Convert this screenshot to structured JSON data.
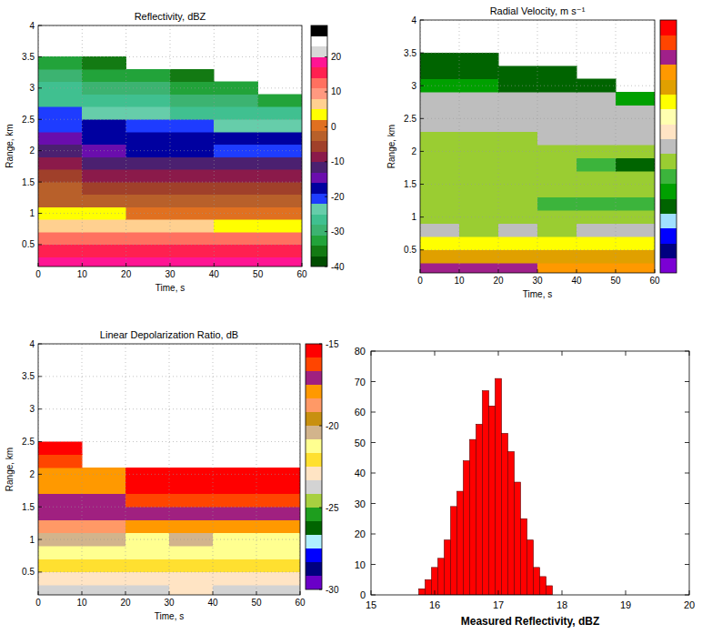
{
  "chart_data": [
    {
      "type": "heatmap",
      "title": "Reflectivity, dBZ",
      "x_label": "Time, s",
      "y_label": "Range, km",
      "xlim": [
        0,
        60
      ],
      "ylim": [
        0.15,
        4
      ],
      "xticks": [
        0,
        10,
        20,
        30,
        40,
        50,
        60
      ],
      "yticks": [
        0.5,
        1,
        1.5,
        2,
        2.5,
        3,
        3.5,
        4
      ],
      "grid": true,
      "x_edges": [
        0,
        10,
        20,
        30,
        40,
        50,
        60
      ],
      "y_edges": [
        0.15,
        0.3,
        0.5,
        0.7,
        0.9,
        1.1,
        1.3,
        1.5,
        1.7,
        1.9,
        2.1,
        2.3,
        2.5,
        2.7,
        2.9,
        3.1,
        3.3,
        3.5,
        3.7,
        3.9
      ],
      "z": [
        [
          17,
          17,
          17,
          17,
          17,
          17
        ],
        [
          16,
          16,
          16,
          16,
          16,
          16
        ],
        [
          13,
          13,
          12,
          12,
          12,
          12
        ],
        [
          7,
          6,
          6,
          5,
          4,
          4
        ],
        [
          2,
          2,
          1,
          1,
          0,
          0
        ],
        [
          -1,
          -2,
          -2,
          -3,
          -3,
          -3
        ],
        [
          -4,
          -5,
          -5,
          -6,
          -6,
          -6
        ],
        [
          -7,
          -8,
          -8,
          -9,
          -9,
          -10
        ],
        [
          -10,
          -11,
          -12,
          -12,
          -13,
          -13
        ],
        [
          -12,
          -14,
          -18,
          -19,
          -20,
          -21
        ],
        [
          -16,
          -19,
          -17,
          -18,
          -18,
          -19
        ],
        [
          -20,
          -18,
          -21,
          -22,
          -23,
          -24
        ],
        [
          -22,
          -23,
          -25,
          -26,
          -27,
          -28
        ],
        [
          -26,
          -26,
          -28,
          -29,
          -30,
          -32
        ],
        [
          -28,
          -29,
          -31,
          -32,
          -34,
          null
        ],
        [
          -31,
          -32,
          -34,
          -35,
          null,
          null
        ],
        [
          -34,
          -35,
          null,
          null,
          null,
          null
        ],
        [
          null,
          null,
          null,
          null,
          null,
          null
        ],
        [
          null,
          null,
          null,
          null,
          null,
          null
        ]
      ],
      "colorbar": {
        "lim": [
          -40,
          29
        ],
        "ticks": [
          -40,
          -30,
          -20,
          -10,
          0,
          10,
          20
        ],
        "colors": [
          "#004d00",
          "#137a13",
          "#22a33a",
          "#3cb371",
          "#40c090",
          "#66cdaa",
          "#1e3cff",
          "#0000a0",
          "#6a0dad",
          "#4b2070",
          "#8b1a4a",
          "#a0402a",
          "#b8602a",
          "#e07020",
          "#ffff00",
          "#ffd090",
          "#ff9980",
          "#ff7060",
          "#ff2050",
          "#ff1493",
          "#d8d8d8",
          "#ffffff",
          "#000000"
        ]
      }
    },
    {
      "type": "heatmap",
      "title": "Radial Velocity, m s⁻¹",
      "x_label": "Time, s",
      "y_label": "Range, km",
      "xlim": [
        0,
        60
      ],
      "ylim": [
        0.15,
        4
      ],
      "xticks": [
        0,
        10,
        20,
        30,
        40,
        50,
        60
      ],
      "yticks": [
        0.5,
        1,
        1.5,
        2,
        2.5,
        3,
        3.5,
        4
      ],
      "grid": true,
      "x_edges": [
        0,
        10,
        20,
        30,
        40,
        50,
        60
      ],
      "y_edges": [
        0.15,
        0.3,
        0.5,
        0.7,
        0.9,
        1.1,
        1.3,
        1.5,
        1.7,
        1.9,
        2.1,
        2.3,
        2.5,
        2.7,
        2.9,
        3.1,
        3.3,
        3.5,
        3.7,
        3.9
      ],
      "z": [
        [
          2.8,
          2.8,
          2.8,
          2.4,
          2.4,
          2.4
        ],
        [
          1.8,
          1.8,
          1.8,
          1.8,
          1.8,
          1.8
        ],
        [
          1.3,
          1.3,
          1.3,
          1.3,
          1.3,
          1.3
        ],
        [
          0,
          -0.4,
          0,
          -0.4,
          0,
          0
        ],
        [
          -0.4,
          -0.4,
          -0.4,
          -0.4,
          -0.4,
          -0.4
        ],
        [
          -0.4,
          -0.4,
          -0.4,
          -0.9,
          -0.9,
          -0.9
        ],
        [
          -0.4,
          -0.4,
          -0.4,
          -0.4,
          -0.4,
          -0.4
        ],
        [
          -0.4,
          -0.4,
          -0.4,
          -0.4,
          -0.4,
          -0.4
        ],
        [
          -0.4,
          -0.4,
          -0.4,
          -0.4,
          -0.9,
          -1.8
        ],
        [
          -0.4,
          -0.4,
          -0.4,
          -0.4,
          -0.4,
          -0.4
        ],
        [
          -0.4,
          -0.4,
          -0.4,
          0,
          0,
          0
        ],
        [
          0,
          0,
          0,
          0,
          0,
          0
        ],
        [
          0,
          0,
          0,
          0,
          0,
          0
        ],
        [
          0,
          0,
          0,
          0,
          0,
          -1.4
        ],
        [
          -1.4,
          -1.4,
          -1.8,
          -1.8,
          -1.8,
          null
        ],
        [
          -1.8,
          -1.8,
          -1.8,
          -1.8,
          null,
          null
        ],
        [
          -1.8,
          -1.8,
          null,
          null,
          null,
          null
        ],
        [
          null,
          null,
          null,
          null,
          null,
          null
        ],
        [
          null,
          null,
          null,
          null,
          null,
          null
        ]
      ],
      "colorbar": {
        "lim": [
          -4,
          4
        ],
        "ticks": [],
        "colors": [
          "#7b00d4",
          "#000080",
          "#0000ff",
          "#a0e0ff",
          "#006400",
          "#00a000",
          "#3cb43c",
          "#9acd32",
          "#bebebe",
          "#ffe4c4",
          "#ffffb0",
          "#ffff00",
          "#e0a000",
          "#ff9900",
          "#a0208a",
          "#ff4500",
          "#ff0000"
        ]
      }
    },
    {
      "type": "heatmap",
      "title": "Linear Depolarization Ratio, dB",
      "x_label": "Time, s",
      "y_label": "Range, km",
      "xlim": [
        0,
        60
      ],
      "ylim": [
        0.15,
        4
      ],
      "xticks": [
        0,
        10,
        20,
        30,
        40,
        50,
        60
      ],
      "yticks": [
        0.5,
        1,
        1.5,
        2,
        2.5,
        3,
        3.5,
        4
      ],
      "grid": true,
      "x_edges": [
        0,
        10,
        20,
        30,
        40,
        50,
        60
      ],
      "y_edges": [
        0.15,
        0.3,
        0.5,
        0.7,
        0.9,
        1.1,
        1.3,
        1.5,
        1.7,
        1.9,
        2.1,
        2.3,
        2.5,
        2.7,
        2.9,
        3.1,
        3.3,
        3.5,
        3.7,
        3.9
      ],
      "z": [
        [
          -23.5,
          -23.5,
          -23.5,
          -23,
          -23.5,
          -23.5
        ],
        [
          -22.8,
          -22.8,
          -22.8,
          -22.8,
          -22.8,
          -22.8
        ],
        [
          -22,
          -22,
          -22,
          -22,
          -22,
          -22
        ],
        [
          -21.2,
          -21.2,
          -21.2,
          -21.2,
          -21.2,
          -21.2
        ],
        [
          -20.4,
          -20.4,
          -21.2,
          -20.4,
          -21.2,
          -21.2
        ],
        [
          -18.8,
          -18.8,
          -17.9,
          -17.9,
          -17.9,
          -17.9
        ],
        [
          -17,
          -17,
          -17,
          -17,
          -17,
          -17
        ],
        [
          -17,
          -17,
          -16.2,
          -16.2,
          -16.2,
          -16.2
        ],
        [
          -17.8,
          -17.8,
          -15.4,
          -15.4,
          -15.4,
          -15.4
        ],
        [
          -18,
          -18,
          -15.5,
          -15.5,
          -15.5,
          -15.5
        ],
        [
          -16,
          null,
          null,
          null,
          null,
          null
        ],
        [
          -15.5,
          null,
          null,
          null,
          null,
          null
        ],
        [
          null,
          null,
          null,
          null,
          null,
          null
        ],
        [
          null,
          null,
          null,
          null,
          null,
          null
        ],
        [
          null,
          null,
          null,
          null,
          null,
          null
        ],
        [
          null,
          null,
          null,
          null,
          null,
          null
        ],
        [
          null,
          null,
          null,
          null,
          null,
          null
        ],
        [
          null,
          null,
          null,
          null,
          null,
          null
        ],
        [
          null,
          null,
          null,
          null,
          null,
          null
        ]
      ],
      "colorbar": {
        "lim": [
          -30,
          -15
        ],
        "ticks": [
          -30,
          -25,
          -20,
          -15
        ],
        "colors": [
          "#6a00c8",
          "#000080",
          "#0000ff",
          "#b0f0ff",
          "#006400",
          "#1e9e1e",
          "#a8d040",
          "#d3d3d3",
          "#ffe4c4",
          "#ffe030",
          "#ffff90",
          "#d2b48c",
          "#c89010",
          "#ff9966",
          "#ff9900",
          "#a02080",
          "#ff4500",
          "#ff0000"
        ]
      }
    },
    {
      "type": "histogram",
      "x_label": "Measured Reflectivity, dBZ",
      "color": "#ff0000",
      "xlim": [
        15,
        20
      ],
      "ylim": [
        0,
        80
      ],
      "xticks": [
        15,
        16,
        17,
        18,
        19,
        20
      ],
      "yticks": [
        0,
        10,
        20,
        30,
        40,
        50,
        60,
        70,
        80
      ],
      "bins": [
        15.75,
        15.85,
        15.95,
        16.05,
        16.15,
        16.25,
        16.35,
        16.45,
        16.55,
        16.65,
        16.75,
        16.85,
        16.95,
        17.05,
        17.15,
        17.25,
        17.35,
        17.45,
        17.55,
        17.65,
        17.75,
        17.85
      ],
      "values": [
        2,
        5,
        9,
        12,
        18,
        29,
        34,
        44,
        51,
        56,
        67,
        62,
        71,
        53,
        47,
        37,
        25,
        18,
        9,
        6,
        3
      ]
    }
  ]
}
